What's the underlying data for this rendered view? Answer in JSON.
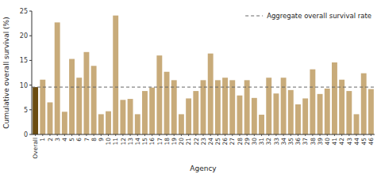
{
  "chart_data": {
    "type": "bar",
    "categories": [
      "Overall",
      "1",
      "2",
      "3",
      "4",
      "5",
      "6",
      "7",
      "8",
      "9",
      "10",
      "11",
      "12",
      "13",
      "14",
      "15",
      "16",
      "17",
      "18",
      "19",
      "20",
      "21",
      "22",
      "23",
      "24",
      "25",
      "26",
      "27",
      "28",
      "29",
      "30",
      "31",
      "32",
      "33",
      "34",
      "35",
      "36",
      "37",
      "38",
      "39",
      "40",
      "41",
      "42",
      "43",
      "44",
      "45",
      "46"
    ],
    "values": [
      9.6,
      11.1,
      6.5,
      22.7,
      4.6,
      15.3,
      11.5,
      16.7,
      13.9,
      4.1,
      4.7,
      24.1,
      7.0,
      7.2,
      4.1,
      8.8,
      9.5,
      16.0,
      12.7,
      11.0,
      4.1,
      7.3,
      8.8,
      11.0,
      16.4,
      11.0,
      11.5,
      11.0,
      7.9,
      11.0,
      7.4,
      4.0,
      11.5,
      8.3,
      11.5,
      9.0,
      6.1,
      7.3,
      13.2,
      8.2,
      9.3,
      14.6,
      11.1,
      8.8,
      4.1,
      12.4,
      9.2
    ],
    "colors": [
      "#6b4c11",
      "#c8ab7a",
      "#c8ab7a",
      "#c8ab7a",
      "#c8ab7a",
      "#c8ab7a",
      "#c8ab7a",
      "#c8ab7a",
      "#c8ab7a",
      "#c8ab7a",
      "#c8ab7a",
      "#c8ab7a",
      "#c8ab7a",
      "#c8ab7a",
      "#c8ab7a",
      "#c8ab7a",
      "#c8ab7a",
      "#c8ab7a",
      "#c8ab7a",
      "#c8ab7a",
      "#c8ab7a",
      "#c8ab7a",
      "#c8ab7a",
      "#c8ab7a",
      "#c8ab7a",
      "#c8ab7a",
      "#c8ab7a",
      "#c8ab7a",
      "#c8ab7a",
      "#c8ab7a",
      "#c8ab7a",
      "#c8ab7a",
      "#c8ab7a",
      "#c8ab7a",
      "#c8ab7a",
      "#c8ab7a",
      "#c8ab7a",
      "#c8ab7a",
      "#c8ab7a",
      "#c8ab7a",
      "#c8ab7a",
      "#c8ab7a",
      "#c8ab7a",
      "#c8ab7a",
      "#c8ab7a",
      "#c8ab7a",
      "#c8ab7a"
    ],
    "reference_line": {
      "value": 9.6,
      "label": "Aggregate overall survival rate",
      "color": "#666666",
      "line_style": "dashed"
    },
    "xlabel": "Agency",
    "ylabel": "Cumulative overall survival (%)",
    "ylim": [
      0,
      25
    ],
    "yticks": [
      0,
      5,
      10,
      15,
      20,
      25
    ],
    "legend": "upper right",
    "grid": false
  }
}
